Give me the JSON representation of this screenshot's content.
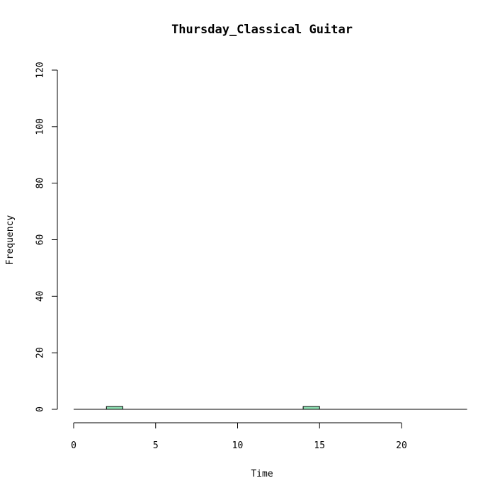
{
  "chart_data": {
    "type": "bar",
    "title": "Thursday_Classical Guitar",
    "xlabel": "Time",
    "ylabel": "Frequency",
    "bin_width": 1,
    "x_range": [
      0,
      24
    ],
    "xlim": [
      0,
      24
    ],
    "ylim": [
      0,
      120
    ],
    "x_ticks": [
      0,
      5,
      10,
      15,
      20
    ],
    "y_ticks": [
      0,
      20,
      40,
      60,
      80,
      100,
      120
    ],
    "bins": [
      {
        "x": 2,
        "value": 1
      },
      {
        "x": 14,
        "value": 1
      }
    ],
    "bar_color": "#8fe3b5",
    "grid": false
  }
}
